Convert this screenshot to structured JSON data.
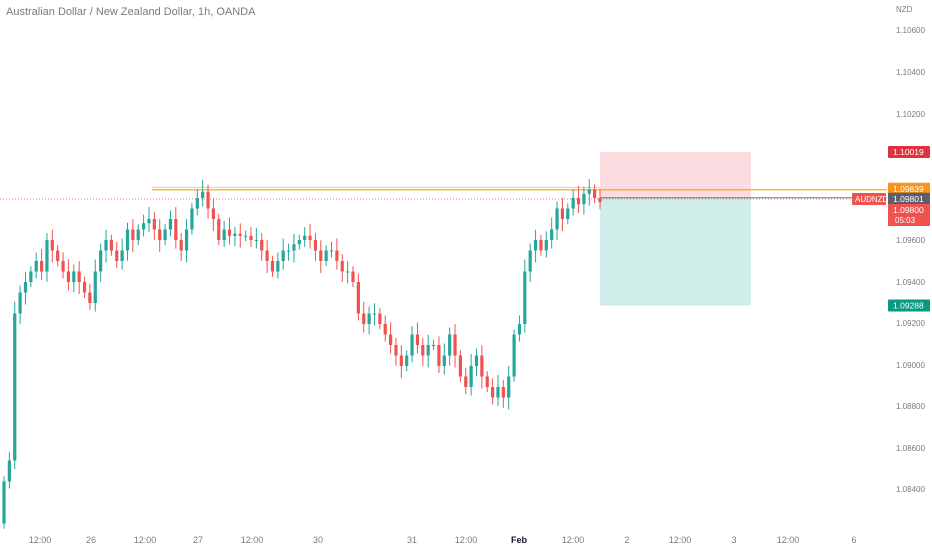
{
  "header": {
    "title": "Australian Dollar / New Zealand Dollar, 1h, OANDA"
  },
  "chart_data": {
    "type": "candlestick",
    "symbol": "AUDNZD",
    "interval": "1h",
    "price_unit": "NZD",
    "ylim": [
      1.083,
      1.1075
    ],
    "y_ticks": [
      "1.10600",
      "1.10400",
      "1.10200",
      "1.09600",
      "1.09400",
      "1.09200",
      "1.09000",
      "1.08800",
      "1.08600",
      "1.08400"
    ],
    "x_ticks": [
      "12:00",
      "26",
      "12:00",
      "27",
      "12:00",
      "30",
      "31",
      "12:00",
      "Feb",
      "12:00",
      "2",
      "12:00",
      "3",
      "12:00",
      "6"
    ],
    "closes": [
      1.0845,
      1.0855,
      1.0925,
      1.0935,
      1.094,
      1.0945,
      1.095,
      1.0945,
      1.096,
      1.0955,
      1.095,
      1.0945,
      1.094,
      1.0945,
      1.094,
      1.0935,
      1.093,
      1.0945,
      1.0955,
      1.096,
      1.0955,
      1.095,
      1.0955,
      1.0965,
      1.096,
      1.0965,
      1.0968,
      1.097,
      1.0965,
      1.096,
      1.0965,
      1.097,
      1.096,
      1.0955,
      1.0965,
      1.0975,
      1.098,
      1.0983,
      1.0975,
      1.097,
      1.096,
      1.0965,
      1.0962,
      1.0963,
      1.0962,
      1.0962,
      1.096,
      1.096,
      1.0955,
      1.095,
      1.0945,
      1.095,
      1.0955,
      1.0955,
      1.0958,
      1.096,
      1.0962,
      1.096,
      1.0955,
      1.095,
      1.0955,
      1.0955,
      1.095,
      1.0945,
      1.0945,
      1.094,
      1.0925,
      1.092,
      1.0925,
      1.0925,
      1.092,
      1.0915,
      1.091,
      1.0905,
      1.09,
      1.0905,
      1.0915,
      1.091,
      1.0905,
      1.091,
      1.091,
      1.09,
      1.0905,
      1.0915,
      1.0905,
      1.0895,
      1.089,
      1.09,
      1.0905,
      1.0895,
      1.089,
      1.0885,
      1.089,
      1.0885,
      1.0895,
      1.0915,
      1.092,
      1.0945,
      1.0955,
      1.096,
      1.0955,
      1.096,
      1.0965,
      1.0975,
      1.097,
      1.0975,
      1.098,
      1.0977,
      1.0982,
      1.0984,
      1.098,
      1.0978
    ],
    "horizontal_line": 1.09839,
    "current_price": 1.098,
    "countdown": "05:03",
    "position": {
      "type": "short",
      "entry": 1.09801,
      "stop": 1.10019,
      "target": 1.09288
    },
    "price_labels": [
      {
        "text": "1.10019",
        "value": 1.10019,
        "color": "#e0313f"
      },
      {
        "text": "1.09839",
        "value": 1.09839,
        "color": "#f7931e"
      },
      {
        "text": "1.09801",
        "value": 1.09801,
        "color": "#5d606b"
      },
      {
        "text": "1.09800",
        "value": 1.098,
        "color": "#ef5350"
      },
      {
        "text": "1.09288",
        "value": 1.09288,
        "color": "#089981"
      }
    ],
    "colors": {
      "up": "#26a69a",
      "down": "#ef5350",
      "line": "#f0a500",
      "stop_zone": "#fcd6da",
      "target_zone": "#cfece9"
    }
  }
}
